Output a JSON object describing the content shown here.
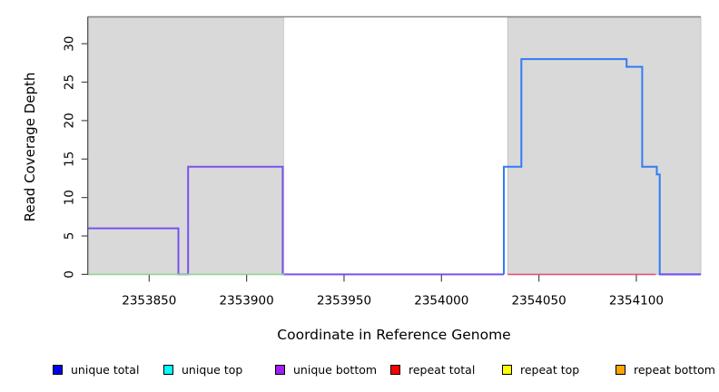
{
  "chart_data": {
    "type": "line",
    "subtype": "step-coverage",
    "title": "",
    "xlabel": "Coordinate in Reference Genome",
    "ylabel": "Read Coverage Depth",
    "xlim": [
      2353818.5,
      2354133.1
    ],
    "ylim": [
      0,
      33.5
    ],
    "x_ticks": [
      2353850,
      2353900,
      2353950,
      2354000,
      2354050,
      2354100
    ],
    "y_ticks": [
      0,
      5,
      10,
      15,
      20,
      25,
      30
    ],
    "grid": false,
    "legend_position": "bottom",
    "regions": [
      {
        "name": "repeat-region-left",
        "x0": 2353818.5,
        "x1": 2353919.3,
        "fill": "#d9d9d9",
        "stroke": "#c6c6c6"
      },
      {
        "name": "unique-region-middle",
        "x0": 2353919.3,
        "x1": 2354034.0,
        "fill": "#ffffff",
        "stroke": "none"
      },
      {
        "name": "repeat-region-right",
        "x0": 2354034.0,
        "x1": 2354133.1,
        "fill": "#d9d9d9",
        "stroke": "#c6c6c6"
      }
    ],
    "top_boundary_line": {
      "depth": 33.5,
      "color": "#8a8a8a"
    },
    "series": [
      {
        "name": "unique total (right region)",
        "color": "#327bf5",
        "width": 2,
        "steps": [
          [
            2354032,
            0
          ],
          [
            2354032,
            14
          ],
          [
            2354041,
            28
          ],
          [
            2354095,
            27
          ],
          [
            2354103,
            14
          ],
          [
            2354110.5,
            13
          ],
          [
            2354112,
            0
          ],
          [
            2354133.1,
            0
          ]
        ]
      },
      {
        "name": "unique bottom (left region)",
        "color": "#7a52ef",
        "width": 2,
        "steps": [
          [
            2353818.5,
            6
          ],
          [
            2353865,
            0
          ],
          [
            2353870,
            14
          ],
          [
            2353918.5,
            0
          ],
          [
            2354032,
            0
          ]
        ]
      },
      {
        "name": "baseline green (left region)",
        "color": "#8fd88f",
        "width": 1.6,
        "steps": [
          [
            2353818.5,
            0
          ],
          [
            2353919.3,
            0
          ]
        ]
      },
      {
        "name": "baseline red (right region)",
        "color": "#e0557a",
        "width": 1.6,
        "steps": [
          [
            2354034,
            0
          ],
          [
            2354110,
            0
          ]
        ]
      },
      {
        "name": "unique bottom (far right)",
        "color": "#7a52ef",
        "width": 2,
        "steps": [
          [
            2354112,
            0
          ],
          [
            2354133.1,
            0
          ]
        ]
      }
    ],
    "legend": [
      {
        "label": "unique total",
        "color": "#0000ee"
      },
      {
        "label": "unique top",
        "color": "#00ffff"
      },
      {
        "label": "unique bottom",
        "color": "#a020f0"
      },
      {
        "label": "repeat total",
        "color": "#ff0000"
      },
      {
        "label": "repeat top",
        "color": "#ffff00"
      },
      {
        "label": "repeat bottom",
        "color": "#ffa500"
      }
    ],
    "legend_x_offsets": [
      58,
      180,
      303,
      430,
      553,
      678
    ],
    "axis_color": "#4a4a4a",
    "tick_font_size": 13.5
  }
}
